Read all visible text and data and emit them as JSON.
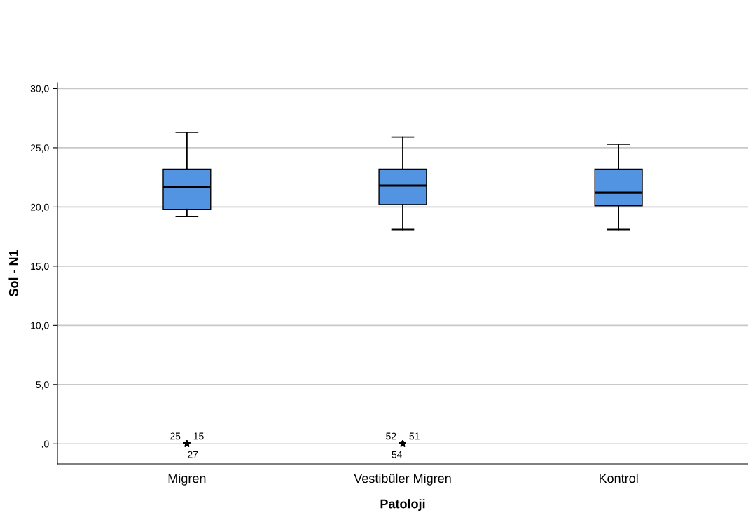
{
  "chart_data": {
    "type": "box",
    "xlabel": "Patoloji",
    "ylabel": "Sol - N1",
    "categories": [
      "Migren",
      "Vestibüler Migren",
      "Kontrol"
    ],
    "boxes": [
      {
        "low": 19.2,
        "q1": 19.8,
        "median": 21.7,
        "q3": 23.2,
        "high": 26.3,
        "outliers": [
          0,
          0,
          0
        ]
      },
      {
        "low": 18.1,
        "q1": 20.2,
        "median": 21.8,
        "q3": 23.2,
        "high": 25.9,
        "outliers": [
          0,
          0,
          0
        ]
      },
      {
        "low": 18.1,
        "q1": 20.1,
        "median": 21.2,
        "q3": 23.2,
        "high": 25.3
      }
    ],
    "color": "#5294e2",
    "marker": "star",
    "ylim": [
      -1.7,
      30.5
    ],
    "yticks": [
      {
        "value": 0,
        "label": ",0"
      },
      {
        "value": 5,
        "label": "5,0"
      },
      {
        "value": 10,
        "label": "10,0"
      },
      {
        "value": 15,
        "label": "15,0"
      },
      {
        "value": 20,
        "label": "20,0"
      },
      {
        "value": 25,
        "label": "25,0"
      },
      {
        "value": 30,
        "label": "30,0"
      }
    ],
    "grid": "y",
    "annotations": [
      "25",
      "15",
      "27",
      "52",
      "51",
      "54"
    ]
  }
}
